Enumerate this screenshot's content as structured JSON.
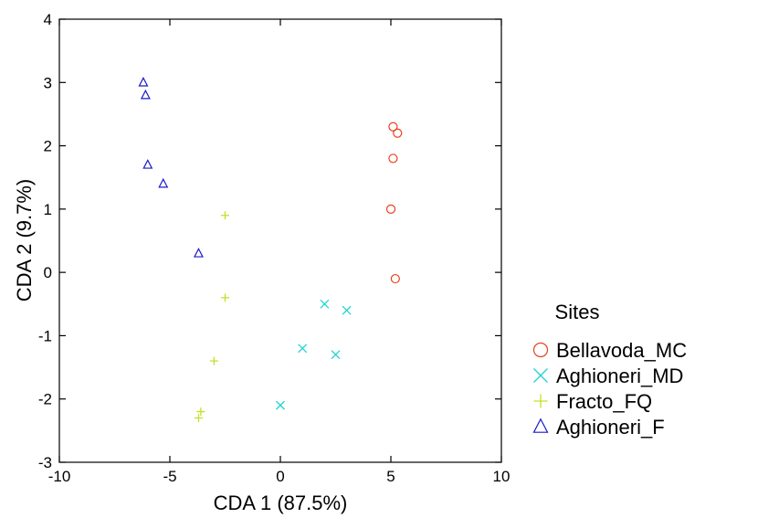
{
  "chart_data": {
    "type": "scatter",
    "title": "",
    "xlabel": "CDA 1 (87.5%)",
    "ylabel": "CDA 2 (9.7%)",
    "xlim": [
      -10,
      10
    ],
    "ylim": [
      -3,
      4
    ],
    "xticks": [
      -10,
      -5,
      0,
      5,
      10
    ],
    "yticks": [
      -3,
      -2,
      -1,
      0,
      1,
      2,
      3,
      4
    ],
    "xtick_labels": [
      "-10",
      "-5",
      "0",
      "5",
      "10"
    ],
    "ytick_labels": [
      "-3",
      "-2",
      "-1",
      "0",
      "1",
      "2",
      "3",
      "4"
    ],
    "grid": false,
    "legend": {
      "title": "Sites",
      "position": "right"
    },
    "series": [
      {
        "name": "Bellavoda_MC",
        "marker": "circle",
        "color": "#e8401c",
        "points": [
          [
            5.1,
            2.3
          ],
          [
            5.3,
            2.2
          ],
          [
            5.1,
            1.8
          ],
          [
            5.0,
            1.0
          ],
          [
            5.2,
            -0.1
          ]
        ]
      },
      {
        "name": "Aghioneri_MD",
        "marker": "x",
        "color": "#22d3d3",
        "points": [
          [
            2.0,
            -0.5
          ],
          [
            3.0,
            -0.6
          ],
          [
            1.0,
            -1.2
          ],
          [
            2.5,
            -1.3
          ],
          [
            0.0,
            -2.1
          ]
        ]
      },
      {
        "name": "Fracto_FQ",
        "marker": "plus",
        "color": "#c4e02a",
        "points": [
          [
            -2.5,
            0.9
          ],
          [
            -2.5,
            -0.4
          ],
          [
            -3.0,
            -1.4
          ],
          [
            -3.6,
            -2.2
          ],
          [
            -3.7,
            -2.3
          ]
        ]
      },
      {
        "name": "Aghioneri_F",
        "marker": "triangle",
        "color": "#1a1ac8",
        "points": [
          [
            -6.2,
            3.0
          ],
          [
            -6.1,
            2.8
          ],
          [
            -6.0,
            1.7
          ],
          [
            -5.3,
            1.4
          ],
          [
            -3.7,
            0.3
          ]
        ]
      }
    ]
  }
}
